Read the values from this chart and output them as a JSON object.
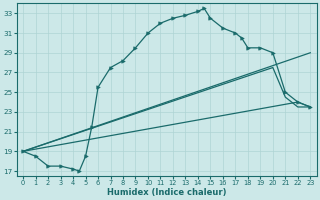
{
  "xlabel": "Humidex (Indice chaleur)",
  "bg_color": "#cce8e8",
  "line_color": "#1a6b6b",
  "grid_color": "#afd4d4",
  "xmin": -0.5,
  "xmax": 23.5,
  "ymin": 16.5,
  "ymax": 34,
  "yticks": [
    17,
    19,
    21,
    23,
    25,
    27,
    29,
    31,
    33
  ],
  "xticks": [
    0,
    1,
    2,
    3,
    4,
    5,
    6,
    7,
    8,
    9,
    10,
    11,
    12,
    13,
    14,
    15,
    16,
    17,
    18,
    19,
    20,
    21,
    22,
    23
  ],
  "curve_main_x": [
    0,
    1,
    2,
    3,
    4,
    4.5,
    5,
    5.5,
    6,
    7,
    8,
    9,
    10,
    11,
    12,
    13,
    14,
    14.5,
    15,
    16,
    17,
    17.5,
    18,
    19,
    20,
    21,
    22,
    23
  ],
  "curve_main_y": [
    19,
    18.5,
    17.5,
    17.5,
    17.2,
    17.0,
    18.5,
    21.5,
    25.5,
    27.5,
    28.2,
    29.5,
    31.0,
    32.0,
    32.5,
    32.8,
    33.2,
    33.5,
    32.5,
    31.5,
    31.0,
    30.5,
    29.5,
    29.5,
    29.0,
    25.0,
    24.0,
    23.5
  ],
  "curve2_x": [
    0,
    23
  ],
  "curve2_y": [
    19.0,
    29.0
  ],
  "curve3_x": [
    0,
    20,
    21,
    22,
    23
  ],
  "curve3_y": [
    19.0,
    27.5,
    24.5,
    23.5,
    23.5
  ],
  "curve4_x": [
    0,
    22,
    23
  ],
  "curve4_y": [
    19.0,
    24.0,
    23.5
  ],
  "marker": ">"
}
